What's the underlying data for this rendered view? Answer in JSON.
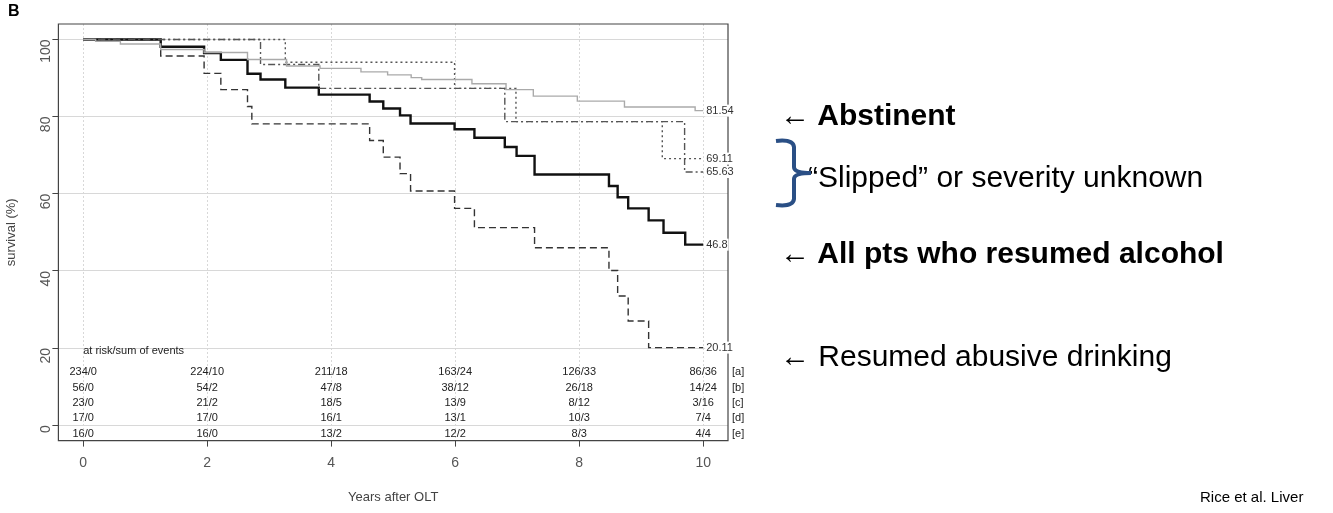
{
  "chart_data": {
    "type": "step",
    "xlabel": "Years after OLT",
    "ylabel": "survival (%)",
    "xlim": [
      -0.4,
      10.4
    ],
    "xticks": [
      0,
      2,
      4,
      6,
      8,
      10
    ],
    "ylim": [
      -4,
      104
    ],
    "yticks": [
      0,
      20,
      40,
      60,
      80,
      100
    ],
    "grid": true,
    "legend": false,
    "marker": "none",
    "series": [
      {
        "color": "#aaaaaa",
        "line_style": "solid",
        "x": [
          0,
          0.2,
          0.6,
          1.25,
          1.95,
          2.65,
          3.28,
          3.82,
          4.48,
          4.91,
          5.29,
          5.46,
          6.27,
          6.82,
          7.26,
          7.97,
          8.73,
          9.87,
          10
        ],
        "values": [
          100,
          99.5,
          98.8,
          97.4,
          96.6,
          94.8,
          93.1,
          92.5,
          91.6,
          90.8,
          90.1,
          89.6,
          88.5,
          87.0,
          85.3,
          84.0,
          82.5,
          81.54,
          81.54
        ],
        "value_labels": [
          null,
          null,
          null,
          null,
          null,
          null,
          null,
          null,
          null,
          null,
          null,
          null,
          null,
          null,
          null,
          null,
          null,
          null,
          "81.54"
        ]
      },
      {
        "color": "#555555",
        "line_style": "dotted",
        "x": [
          0,
          3.26,
          5.99,
          6.98,
          9.34,
          10
        ],
        "values": [
          100,
          94.1,
          87.3,
          78.7,
          69.11,
          69.11
        ],
        "value_labels": [
          null,
          null,
          null,
          null,
          null,
          "69.11"
        ]
      },
      {
        "color": "#555555",
        "line_style": "dashdot",
        "x": [
          0,
          2.86,
          3.8,
          6.8,
          9.7,
          10
        ],
        "values": [
          100,
          93.5,
          87.3,
          78.7,
          65.63,
          65.63
        ],
        "value_labels": [
          null,
          null,
          null,
          null,
          null,
          "65.63"
        ]
      },
      {
        "color": "#111111",
        "line_style": "solid",
        "x": [
          0,
          1.25,
          1.95,
          2.22,
          2.65,
          2.86,
          3.26,
          3.8,
          4.62,
          4.84,
          5.11,
          5.28,
          5.99,
          6.31,
          6.8,
          6.99,
          7.28,
          8.48,
          8.62,
          8.79,
          9.12,
          9.36,
          9.71,
          10
        ],
        "values": [
          100,
          98.1,
          96.5,
          94.7,
          91.1,
          89.6,
          87.5,
          85.7,
          83.9,
          82.1,
          80.3,
          78.2,
          76.7,
          74.5,
          72.1,
          69.8,
          65.0,
          62.0,
          59.1,
          56.2,
          53.1,
          49.9,
          46.8,
          46.8
        ],
        "value_labels": [
          null,
          null,
          null,
          null,
          null,
          null,
          null,
          null,
          null,
          null,
          null,
          null,
          null,
          null,
          null,
          null,
          null,
          null,
          null,
          null,
          null,
          null,
          null,
          "46.8"
        ]
      },
      {
        "color": "#333333",
        "line_style": "dashed",
        "x": [
          0,
          1.25,
          1.95,
          2.22,
          2.65,
          2.72,
          4.62,
          4.84,
          5.11,
          5.28,
          5.99,
          6.31,
          7.28,
          8.48,
          8.62,
          8.79,
          9.12,
          10
        ],
        "values": [
          100,
          95.7,
          91.2,
          87.0,
          82.6,
          78.1,
          73.8,
          69.5,
          65.2,
          60.7,
          56.2,
          51.2,
          46.0,
          40.1,
          33.5,
          27.0,
          20.11,
          20.11
        ],
        "value_labels": [
          null,
          null,
          null,
          null,
          null,
          null,
          null,
          null,
          null,
          null,
          null,
          null,
          null,
          null,
          null,
          null,
          null,
          "20.11"
        ]
      }
    ],
    "annotations": [
      "B",
      "at risk/sum of events",
      "234/0",
      "224/10",
      "211/18",
      "163/24",
      "126/33",
      "86/36",
      "[a]",
      "56/0",
      "54/2",
      "47/8",
      "38/12",
      "26/18",
      "14/24",
      "[b]",
      "23/0",
      "21/2",
      "18/5",
      "13/9",
      "8/12",
      "3/16",
      "[c]",
      "17/0",
      "17/0",
      "16/1",
      "13/1",
      "10/3",
      "7/4",
      "[d]",
      "16/0",
      "16/0",
      "13/2",
      "12/2",
      "8/3",
      "4/4",
      "[e]",
      "← Abstinent",
      "“Slipped” or severity unknown",
      "← All pts who resumed alcohol",
      "← Resumed abusive drinking",
      "Rice et al. Liver"
    ]
  }
}
